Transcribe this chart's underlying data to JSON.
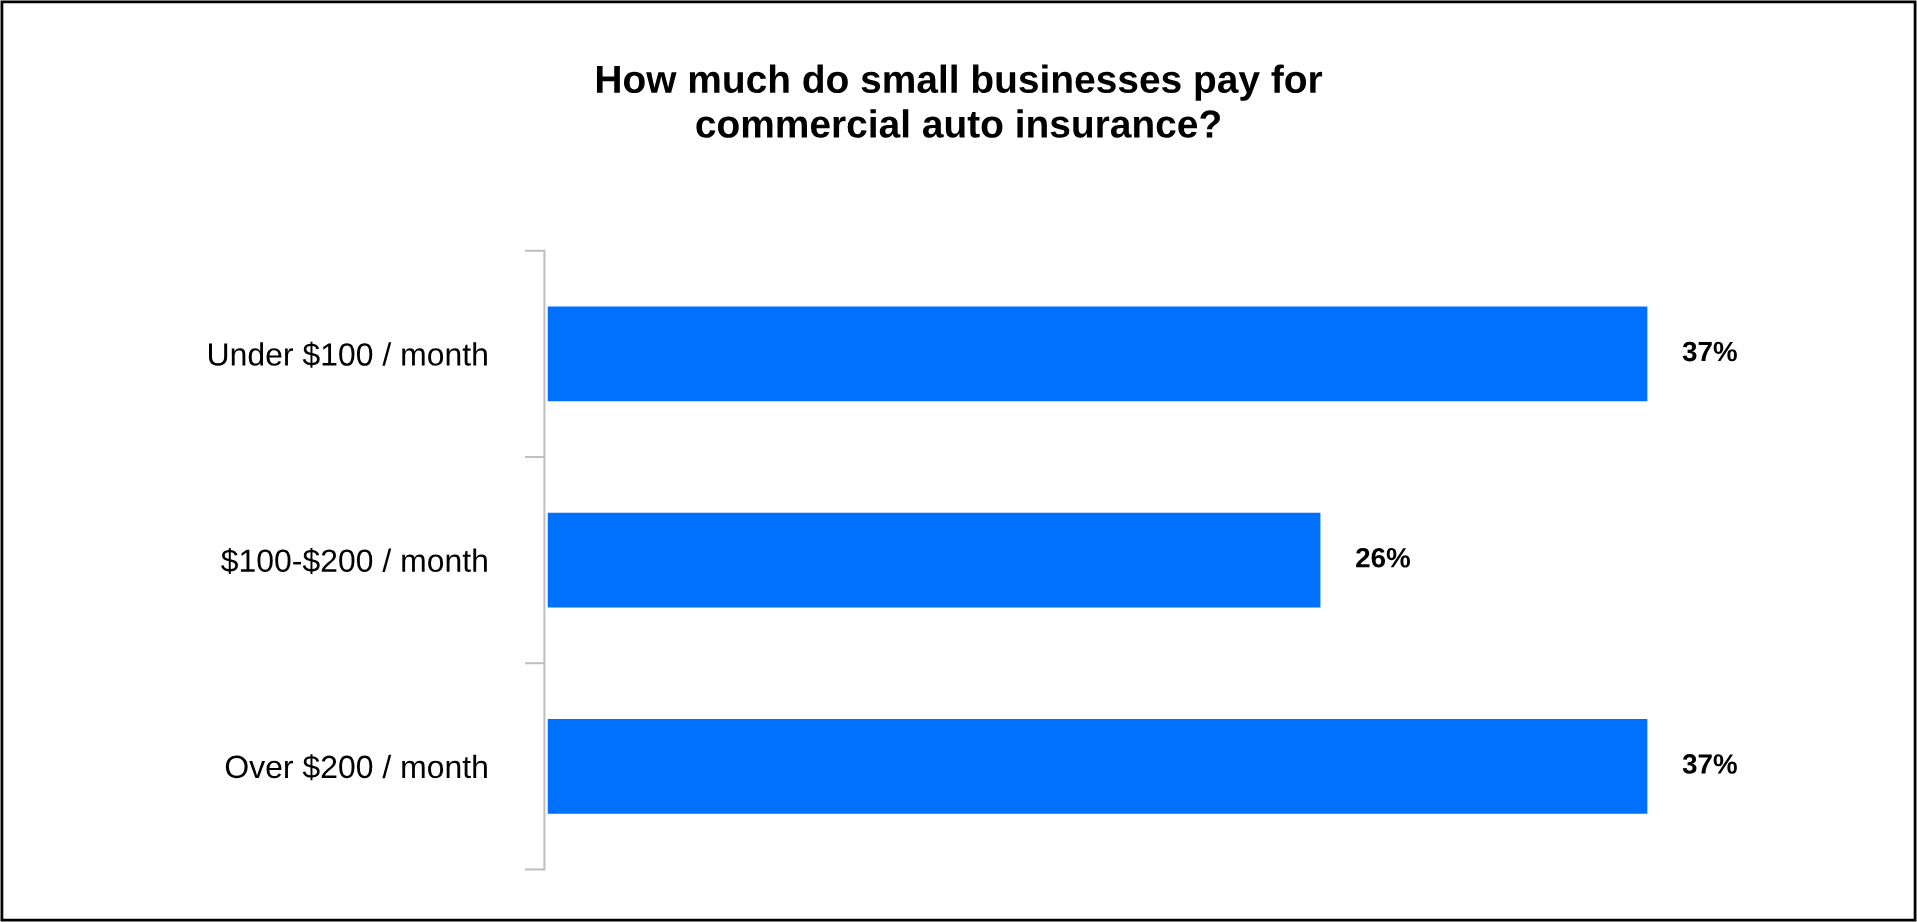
{
  "chart_data": {
    "type": "bar",
    "orientation": "horizontal",
    "title": "How much do small businesses pay for\ncommercial auto insurance?",
    "categories": [
      "Under $100 / month",
      "$100-$200 / month",
      "Over $200 / month"
    ],
    "values": [
      37,
      26,
      37
    ],
    "color": "#0070ff",
    "data_labels": true,
    "value_labels": [
      "37%",
      "26%",
      "37%"
    ],
    "grid": false,
    "legend": false
  }
}
